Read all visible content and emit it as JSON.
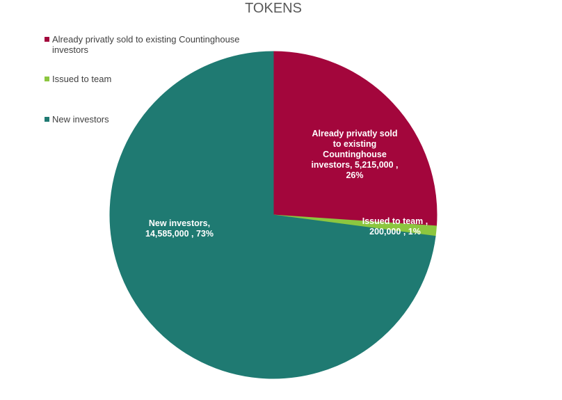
{
  "chart_data": {
    "type": "pie",
    "title": "TOKENS",
    "legend_position": "top-left",
    "slices": [
      {
        "name": "Already privatly sold to existing Countinghouse investors",
        "legend_lines": [
          "Already privatly sold to existing Countinghouse",
          "investors"
        ],
        "value": 5215000,
        "percent": "26%",
        "label_lines": [
          "Already privatly sold",
          "to existing",
          "Countinghouse",
          "investors,  5,215,000 ,",
          "26%"
        ],
        "color": "#A3063C"
      },
      {
        "name": "Issued to team",
        "legend_lines": [
          "Issued to team"
        ],
        "value": 200000,
        "percent": "1%",
        "label_lines": [
          "Issued to team ,",
          "200,000 , 1%"
        ],
        "color": "#8CC63F"
      },
      {
        "name": "New investors",
        "legend_lines": [
          "New investors"
        ],
        "value": 14585000,
        "percent": "73%",
        "label_lines": [
          "New investors,",
          "14,585,000 , 73%"
        ],
        "color": "#1F7A72"
      }
    ]
  }
}
